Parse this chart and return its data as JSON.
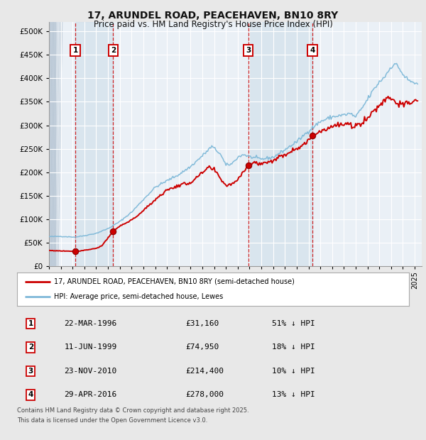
{
  "title": "17, ARUNDEL ROAD, PEACEHAVEN, BN10 8RY",
  "subtitle": "Price paid vs. HM Land Registry's House Price Index (HPI)",
  "legend_line1": "17, ARUNDEL ROAD, PEACEHAVEN, BN10 8RY (semi-detached house)",
  "legend_line2": "HPI: Average price, semi-detached house, Lewes",
  "footer1": "Contains HM Land Registry data © Crown copyright and database right 2025.",
  "footer2": "This data is licensed under the Open Government Licence v3.0.",
  "transactions": [
    {
      "num": 1,
      "date": "22-MAR-1996",
      "price": 31160,
      "pct": "51%",
      "dir": "↓"
    },
    {
      "num": 2,
      "date": "11-JUN-1999",
      "price": 74950,
      "pct": "18%",
      "dir": "↓"
    },
    {
      "num": 3,
      "date": "23-NOV-2010",
      "price": 214400,
      "pct": "10%",
      "dir": "↓"
    },
    {
      "num": 4,
      "date": "29-APR-2016",
      "price": 278000,
      "pct": "13%",
      "dir": "↓"
    }
  ],
  "hpi_color": "#7db8d8",
  "price_color": "#cc0000",
  "fig_bg": "#e8e8e8",
  "plot_bg": "#eaf0f6",
  "grid_color": "#ffffff",
  "ylim": [
    0,
    520000
  ],
  "ytick_vals": [
    0,
    50000,
    100000,
    150000,
    200000,
    250000,
    300000,
    350000,
    400000,
    450000,
    500000
  ],
  "ytick_labels": [
    "£0",
    "£50K",
    "£100K",
    "£150K",
    "£200K",
    "£250K",
    "£300K",
    "£350K",
    "£400K",
    "£450K",
    "£500K"
  ],
  "xlim_start": 1994.0,
  "xlim_end": 2025.6
}
